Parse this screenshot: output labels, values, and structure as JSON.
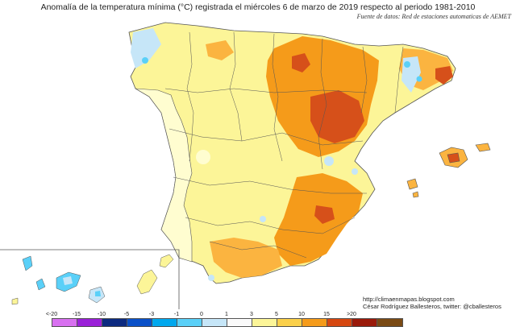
{
  "title": "Anomalía de la temperatura mínima (°C) registrada el miércoles 6 de marzo de 2019 respecto al periodo 1981-2010",
  "source": "Fuente de datos: Red de estaciones automaticas de AEMET",
  "credits": {
    "url": "http://climaenmapas.blogspot.com",
    "author": "César Rodríguez Ballesteros, twitter: @cballesteros"
  },
  "legend": {
    "ticks": [
      "<-20",
      "-15",
      "-10",
      "-5",
      "-3",
      "-1",
      "0",
      "1",
      "3",
      "5",
      "10",
      "15",
      ">20"
    ],
    "colors": [
      "#d870f0",
      "#9a20d8",
      "#0c2a80",
      "#0a50c8",
      "#00a8ee",
      "#5ad0f8",
      "#c6e6f8",
      "#fafafa",
      "#fcf598",
      "#fbd04a",
      "#f59b1a",
      "#d64710",
      "#9a1a0a",
      "#7a4a14"
    ]
  },
  "map": {
    "colors": {
      "sea": "#ffffff",
      "land_base": "#fcf598",
      "pale_yellow": "#fffdd0",
      "orange": "#f59b1a",
      "light_orange": "#fbb440",
      "red_brown": "#d6501a",
      "light_blue": "#c6e6f8",
      "blue": "#5ad0f8",
      "borders": "#555555"
    }
  }
}
